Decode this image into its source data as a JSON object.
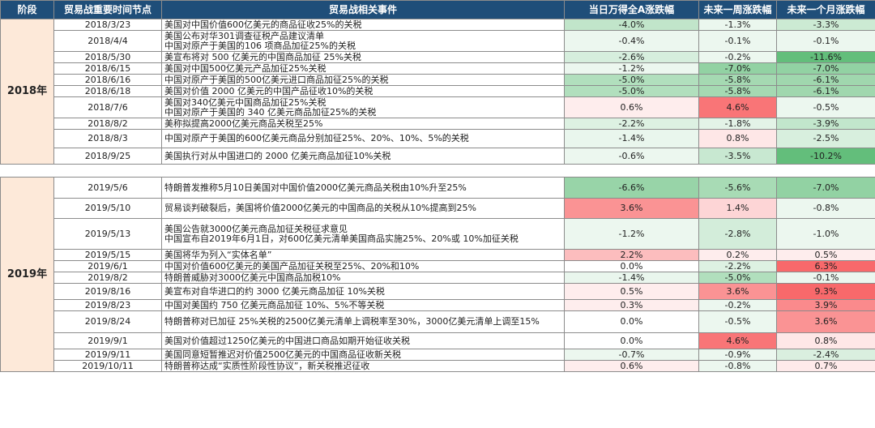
{
  "headers": {
    "phase": "阶段",
    "date": "贸易战重要时间节点",
    "event": "贸易战相关事件",
    "day": "当日万得全A涨跌幅",
    "week": "未来一周涨跌幅",
    "month": "未来一个月涨跌幅"
  },
  "colors": {
    "header_bg": "#1f4e79",
    "phase_bg": "#fde9d9",
    "positive_base": "#f8696b",
    "negative_base": "#63be7b"
  },
  "groups": [
    {
      "phase": "2018年",
      "rows": [
        {
          "date": "2018/3/23",
          "event": "美国对中国价值600亿美元的商品征收25%的关税",
          "day": "-4.0%",
          "week": "-1.3%",
          "month": "-3.3%"
        },
        {
          "date": "2018/4/4",
          "event": "美国公布对华301调查征税产品建议清单\n中国对原产于美国的106 项商品加征25%的关税",
          "day": "-0.4%",
          "week": "-0.1%",
          "month": "-0.1%"
        },
        {
          "date": "2018/5/30",
          "event": "美宣布将对 500 亿美元的中国商品加征 25%关税",
          "day": "-2.6%",
          "week": "-0.2%",
          "month": "-11.6%"
        },
        {
          "date": "2018/6/15",
          "event": "美国对中国500亿美元产品加征25%关税",
          "day": "-1.2%",
          "week": "-7.0%",
          "month": "-7.0%"
        },
        {
          "date": "2018/6/16",
          "event": "中国对原产于美国的500亿美元进口商品加征25%的关税",
          "day": "-5.0%",
          "week": "-5.8%",
          "month": "-6.1%"
        },
        {
          "date": "2018/6/18",
          "event": "美国对价值 2000 亿美元的中国产品征收10%的关税",
          "day": "-5.0%",
          "week": "-5.8%",
          "month": "-6.1%"
        },
        {
          "date": "2018/7/6",
          "event": "美国对340亿美元中国商品加征25%关税\n中国对原产于美国的 340 亿美元商品加征25%的关税",
          "day": "0.6%",
          "week": "4.6%",
          "month": "-0.5%"
        },
        {
          "date": "2018/8/2",
          "event": "美称拟提高2000亿美元商品关税至25%",
          "day": "-2.2%",
          "week": "-1.8%",
          "month": "-3.9%"
        },
        {
          "date": "2018/8/3",
          "event": "中国对原产于美国的600亿美元商品分别加征25%、20%、10%、5%的关税",
          "day": "-1.4%",
          "week": "0.8%",
          "month": "-2.5%"
        },
        {
          "date": "2018/9/25",
          "event": "美国执行对从中国进口的 2000 亿美元商品加征10%关税",
          "day": "-0.6%",
          "week": "-3.5%",
          "month": "-10.2%"
        }
      ]
    },
    {
      "phase": "2019年",
      "rows": [
        {
          "date": "2019/5/6",
          "event": "特朗普发推称5月10日美国对中国价值2000亿美元商品关税由10%升至25%",
          "day": "-6.6%",
          "week": "-5.6%",
          "month": "-7.0%"
        },
        {
          "date": "2019/5/10",
          "event": "贸易谈判破裂后，美国将价值2000亿美元的中国商品的关税从10%提高到25%",
          "day": "3.6%",
          "week": "1.4%",
          "month": "-0.8%"
        },
        {
          "date": "2019/5/13",
          "event": "美国公告就3000亿美元商品加征关税征求意见\n中国宣布自2019年6月1日，对600亿美元清单美国商品实施25%、20%或 10%加征关税",
          "day": "-1.2%",
          "week": "-2.8%",
          "month": "-1.0%"
        },
        {
          "date": "2019/5/15",
          "event": "美国将华为列入“实体名单”",
          "day": "2.2%",
          "week": "0.2%",
          "month": "0.5%"
        },
        {
          "date": "2019/6/1",
          "event": "中国对价值600亿美元的美国产品加征关税至25%、20%和10%",
          "day": "0.0%",
          "week": "-2.2%",
          "month": "6.3%"
        },
        {
          "date": "2019/8/2",
          "event": "特朗普威胁对3000亿美元中国商品加税10%",
          "day": "-1.4%",
          "week": "-5.0%",
          "month": "-0.1%"
        },
        {
          "date": "2019/8/16",
          "event": "美宣布对自华进口的约 3000 亿美元商品加征 10%关税",
          "day": "0.5%",
          "week": "3.6%",
          "month": "9.3%"
        },
        {
          "date": "2019/8/23",
          "event": "中国对美国约 750 亿美元商品加征 10%、5%不等关税",
          "day": "0.3%",
          "week": "-0.2%",
          "month": "3.9%"
        },
        {
          "date": "2019/8/24",
          "event": "特朗普称对已加征 25%关税的2500亿美元清单上调税率至30%，3000亿美元清单上调至15%",
          "day": "0.0%",
          "week": "-0.5%",
          "month": "3.6%"
        },
        {
          "date": "2019/9/1",
          "event": "美国对价值超过1250亿美元的中国进口商品如期开始征收关税",
          "day": "0.0%",
          "week": "4.6%",
          "month": "0.8%"
        },
        {
          "date": "2019/9/11",
          "event": "美国同意短暂推迟对价值2500亿美元的中国商品征收新关税",
          "day": "-0.7%",
          "week": "-0.9%",
          "month": "-2.4%"
        },
        {
          "date": "2019/10/11",
          "event": "特朗普称达成“实质性阶段性协议”，新关税推迟征收",
          "day": "0.6%",
          "week": "-0.8%",
          "month": "0.7%"
        }
      ]
    }
  ]
}
